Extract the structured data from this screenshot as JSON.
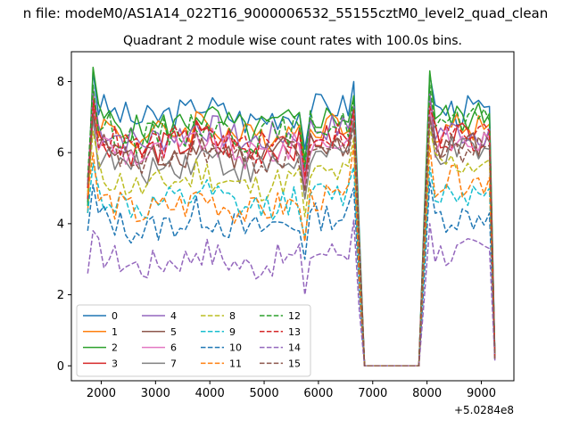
{
  "suptitle": "n file: modeM0/AS1A14_022T16_9000006532_55155cztM0_level2_quad_clean",
  "chart_data": {
    "type": "line",
    "title": "Quadrant 2 module wise count rates with 100.0s bins.",
    "xlabel": "",
    "ylabel": "",
    "x_offset_label": "+5.0284e8",
    "xlim": [
      1450,
      9600
    ],
    "ylim": [
      -0.42,
      8.84
    ],
    "xticks": [
      2000,
      3000,
      4000,
      5000,
      6000,
      7000,
      8000,
      9000
    ],
    "yticks": [
      0,
      2,
      4,
      6,
      8
    ],
    "x": [
      1750,
      1850,
      1950,
      2050,
      2150,
      2250,
      2350,
      2450,
      2550,
      2650,
      2750,
      2850,
      2950,
      3050,
      3150,
      3250,
      3350,
      3450,
      3550,
      3650,
      3750,
      3850,
      3950,
      4050,
      4150,
      4250,
      4350,
      4450,
      4550,
      4650,
      4750,
      4850,
      4950,
      5050,
      5150,
      5250,
      5350,
      5450,
      5550,
      5650,
      5750,
      5850,
      5950,
      6050,
      6150,
      6250,
      6350,
      6450,
      6550,
      6650,
      6750,
      6850,
      6950,
      7050,
      7150,
      7250,
      7350,
      7450,
      7550,
      7650,
      7750,
      7850,
      7950,
      8050,
      8150,
      8250,
      8350,
      8450,
      8550,
      8650,
      8750,
      8850,
      8950,
      9050,
      9150,
      9250
    ],
    "legend": {
      "location": "lower-left",
      "columns": 4
    },
    "series": [
      {
        "name": "0",
        "color": "#1f77b4",
        "dash": "solid",
        "start": 4.6,
        "peak_left": 8.3,
        "base": 7.0,
        "rise_right": 8.0,
        "peak_right": 8.2,
        "base_right": 7.2,
        "end_value": 0.3
      },
      {
        "name": "1",
        "color": "#ff7f0e",
        "dash": "solid",
        "start": 4.3,
        "peak_left": 7.7,
        "base": 6.5,
        "rise_right": 7.3,
        "peak_right": 7.7,
        "base_right": 6.7,
        "end_value": 0.2
      },
      {
        "name": "2",
        "color": "#2ca02c",
        "dash": "solid",
        "start": 4.5,
        "peak_left": 8.4,
        "base": 6.7,
        "rise_right": 7.6,
        "peak_right": 8.3,
        "base_right": 7.0,
        "end_value": 0.25
      },
      {
        "name": "3",
        "color": "#d62728",
        "dash": "solid",
        "start": 4.7,
        "peak_left": 7.5,
        "base": 6.1,
        "rise_right": 7.3,
        "peak_right": 7.5,
        "base_right": 6.5,
        "end_value": 0.2
      },
      {
        "name": "4",
        "color": "#9467bd",
        "dash": "solid",
        "start": 5.2,
        "peak_left": 7.8,
        "base": 6.4,
        "rise_right": 7.3,
        "peak_right": 7.7,
        "base_right": 6.6,
        "end_value": 0.2
      },
      {
        "name": "5",
        "color": "#8c564b",
        "dash": "solid",
        "start": 5.0,
        "peak_left": 7.2,
        "base": 5.9,
        "rise_right": 7.2,
        "peak_right": 7.2,
        "base_right": 6.2,
        "end_value": 0.2
      },
      {
        "name": "6",
        "color": "#e377c2",
        "dash": "solid",
        "start": 5.1,
        "peak_left": 7.3,
        "base": 6.0,
        "rise_right": 7.1,
        "peak_right": 7.3,
        "base_right": 6.3,
        "end_value": 0.2
      },
      {
        "name": "7",
        "color": "#7f7f7f",
        "dash": "solid",
        "start": 4.8,
        "peak_left": 7.0,
        "base": 5.6,
        "rise_right": 6.9,
        "peak_right": 7.0,
        "base_right": 6.0,
        "end_value": 0.2
      },
      {
        "name": "8",
        "color": "#bcbd22",
        "dash": "dashed",
        "start": 4.9,
        "peak_left": 6.6,
        "base": 5.1,
        "rise_right": 6.4,
        "peak_right": 6.7,
        "base_right": 5.7,
        "end_value": 0.2
      },
      {
        "name": "9",
        "color": "#17becf",
        "dash": "dashed",
        "start": 4.3,
        "peak_left": 5.7,
        "base": 4.5,
        "rise_right": 5.6,
        "peak_right": 5.6,
        "base_right": 4.9,
        "end_value": 0.2
      },
      {
        "name": "10",
        "color": "#1f77b4",
        "dash": "dashed",
        "start": 3.8,
        "peak_left": 5.1,
        "base": 3.9,
        "rise_right": 5.0,
        "peak_right": 5.2,
        "base_right": 4.2,
        "end_value": 0.2
      },
      {
        "name": "11",
        "color": "#ff7f0e",
        "dash": "dashed",
        "start": 4.8,
        "peak_left": 6.0,
        "base": 4.4,
        "rise_right": 6.2,
        "peak_right": 6.2,
        "base_right": 5.2,
        "end_value": 0.2
      },
      {
        "name": "12",
        "color": "#2ca02c",
        "dash": "dashed",
        "start": 5.3,
        "peak_left": 7.9,
        "base": 6.5,
        "rise_right": 7.5,
        "peak_right": 7.9,
        "base_right": 6.8,
        "end_value": 0.2
      },
      {
        "name": "13",
        "color": "#d62728",
        "dash": "dashed",
        "start": 5.0,
        "peak_left": 7.3,
        "base": 6.2,
        "rise_right": 7.2,
        "peak_right": 7.3,
        "base_right": 6.5,
        "end_value": 0.2
      },
      {
        "name": "14",
        "color": "#9467bd",
        "dash": "dashed",
        "start": 2.6,
        "peak_left": 3.8,
        "base": 2.9,
        "rise_right": 4.1,
        "peak_right": 4.0,
        "base_right": 3.2,
        "end_value": 0.15
      },
      {
        "name": "15",
        "color": "#8c564b",
        "dash": "dashed",
        "start": 5.1,
        "peak_left": 7.1,
        "base": 5.8,
        "rise_right": 6.8,
        "peak_right": 7.0,
        "base_right": 6.1,
        "end_value": 0.2
      }
    ],
    "gap": {
      "start_x": 6850,
      "end_x": 7850,
      "value": 0.0
    }
  }
}
